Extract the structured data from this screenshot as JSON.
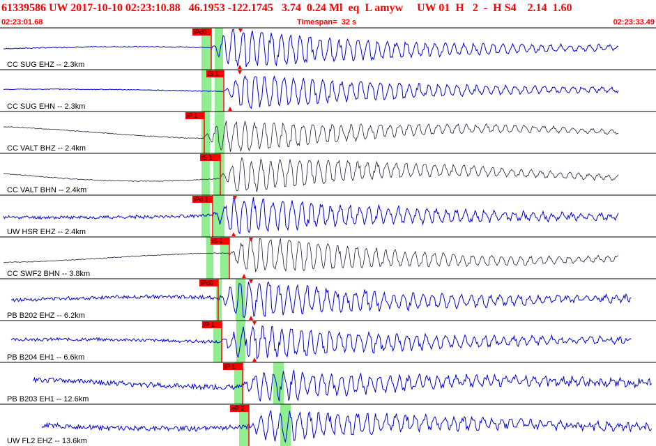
{
  "header": {
    "event_line": "61339586 UW 2017-10-10 02:23:10.88   46.1953 -122.1745   3.74  0.24 Ml  eq  L amyw     UW 01  H   2  -  H S4    2.14  1.60",
    "start_time": "02:23:01.68",
    "timespan": "Timespan=  32 s",
    "end_time": "02:23:33.49"
  },
  "colors": {
    "header_text": "#ff0000",
    "blue_trace": "#0000cc",
    "black_trace": "#1a1a3a",
    "pick_flag": "#ff0000",
    "window_highlight": "#90ee90"
  },
  "channels": [
    {
      "label": "CC SUG EHZ -- 2.3km",
      "pick": "iPd0",
      "color": "blue"
    },
    {
      "label": "CC SUG EHN -- 2.3km",
      "pick": "iS 1",
      "color": "blue"
    },
    {
      "label": "CC VALT BHZ -- 2.4km",
      "pick": "iP 1",
      "color": "black"
    },
    {
      "label": "CC VALT BHN -- 2.4km",
      "pick": "iS 1",
      "color": "black"
    },
    {
      "label": "UW HSR EHZ -- 2.4km",
      "pick": "iPd 1",
      "color": "blue"
    },
    {
      "label": "CC SWF2 BHN -- 3.8km",
      "pick": "iS 1",
      "color": "black"
    },
    {
      "label": "PB B202 EHZ -- 6.2km",
      "pick": "iPd0",
      "color": "blue"
    },
    {
      "label": "PB B204 EH1 -- 6.6km",
      "pick": "iP 1",
      "color": "blue"
    },
    {
      "label": "PB B203 EH1 -- 12.6km",
      "pick": "iP 1",
      "color": "blue"
    },
    {
      "label": "UW FL2 EHZ -- 13.6km",
      "pick": "eP 2",
      "color": "blue"
    }
  ]
}
